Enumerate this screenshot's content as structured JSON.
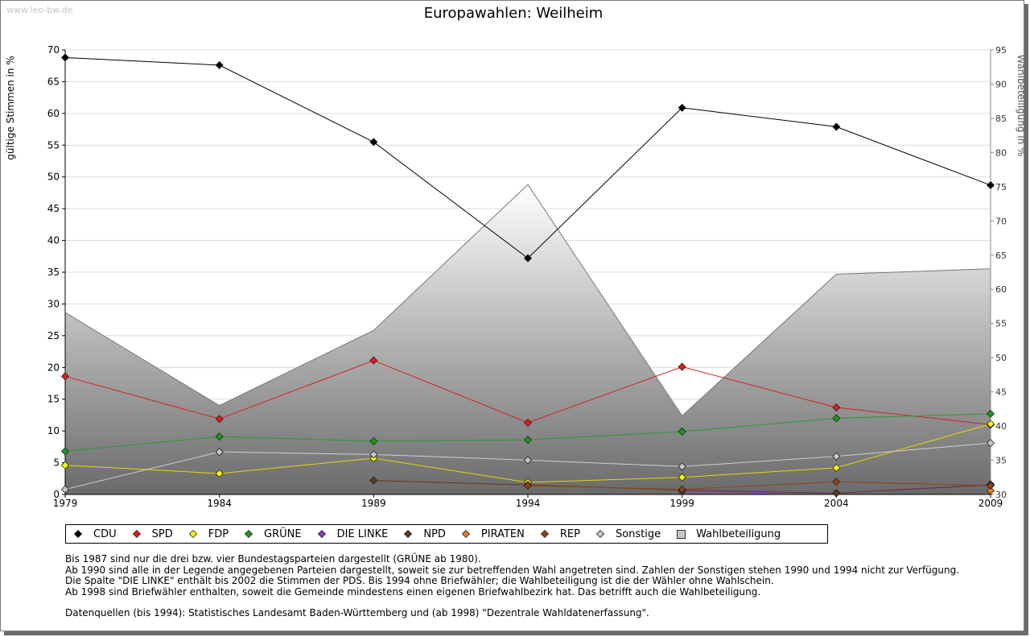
{
  "watermark": "www.leo-bw.de",
  "chart_data": {
    "type": "line",
    "title": "Europawahlen: Weilheim",
    "ylabel": "gültige Stimmen in %",
    "y2label": "Wahlbeteiligung in %",
    "x": [
      "1979",
      "1984",
      "1989",
      "1994",
      "1999",
      "2004",
      "2009"
    ],
    "ylim": [
      0,
      70
    ],
    "yticks": [
      0,
      5,
      10,
      15,
      20,
      25,
      30,
      35,
      40,
      45,
      50,
      55,
      60,
      65,
      70
    ],
    "y2lim": [
      30,
      95
    ],
    "y2ticks": [
      30,
      35,
      40,
      45,
      50,
      55,
      60,
      65,
      70,
      75,
      80,
      85,
      90,
      95
    ],
    "area": {
      "name": "Wahlbeteiligung",
      "values": [
        56.6,
        43.0,
        54.0,
        75.3,
        41.5,
        62.2,
        63.0
      ]
    },
    "series": [
      {
        "name": "CDU",
        "color": "#000000",
        "line": "#000000",
        "values": [
          68.8,
          67.6,
          55.5,
          37.2,
          60.9,
          57.9,
          48.7
        ]
      },
      {
        "name": "SPD",
        "color": "#e41a1c",
        "line": "#d42020",
        "values": [
          18.6,
          11.9,
          21.1,
          11.3,
          20.1,
          13.7,
          11.0
        ]
      },
      {
        "name": "FDP",
        "color": "#ffff00",
        "line": "#e6d800",
        "values": [
          4.6,
          3.3,
          5.7,
          1.9,
          2.7,
          4.2,
          11.1
        ]
      },
      {
        "name": "GRÜNE",
        "color": "#1a9a1a",
        "line": "#2a9a2a",
        "values": [
          6.8,
          9.1,
          8.4,
          8.6,
          9.9,
          12.0,
          12.7
        ]
      },
      {
        "name": "DIE LINKE",
        "color": "#9933cc",
        "line": "#9933cc",
        "values": [
          null,
          null,
          null,
          null,
          0.5,
          0.2,
          1.6
        ]
      },
      {
        "name": "NPD",
        "color": "#5c3a1e",
        "line": "#5c3a1e",
        "values": [
          null,
          null,
          2.2,
          1.5,
          0.7,
          0.2,
          1.5
        ]
      },
      {
        "name": "PIRATEN",
        "color": "#ee7a1a",
        "line": "#ee7a1a",
        "values": [
          null,
          null,
          null,
          null,
          null,
          null,
          0.6
        ]
      },
      {
        "name": "REP",
        "color": "#8b4513",
        "line": "#8b4513",
        "values": [
          null,
          null,
          null,
          1.4,
          0.8,
          2.0,
          1.4
        ]
      },
      {
        "name": "Sonstige",
        "color": "#c8c8c8",
        "line": "#cfcfcf",
        "values": [
          0.8,
          6.7,
          6.3,
          5.4,
          4.4,
          6.0,
          8.1
        ]
      }
    ]
  },
  "legend": [
    {
      "label": "CDU",
      "color": "#000000",
      "shape": "diamond"
    },
    {
      "label": "SPD",
      "color": "#e41a1c",
      "shape": "diamond"
    },
    {
      "label": "FDP",
      "color": "#ffff00",
      "shape": "diamond"
    },
    {
      "label": "GRÜNE",
      "color": "#1a9a1a",
      "shape": "diamond"
    },
    {
      "label": "DIE LINKE",
      "color": "#9933cc",
      "shape": "diamond"
    },
    {
      "label": "NPD",
      "color": "#5c3a1e",
      "shape": "diamond"
    },
    {
      "label": "PIRATEN",
      "color": "#ee7a1a",
      "shape": "diamond"
    },
    {
      "label": "REP",
      "color": "#8b4513",
      "shape": "diamond"
    },
    {
      "label": "Sonstige",
      "color": "#c8c8c8",
      "shape": "diamond"
    },
    {
      "label": "Wahlbeteiligung",
      "color": "#c0c0c0",
      "shape": "square"
    }
  ],
  "notes": [
    "Bis 1987 sind nur die drei bzw. vier Bundestagsparteien dargestellt (GRÜNE ab 1980).",
    "Ab 1990 sind alle in der Legende angegebenen Parteien dargestellt, soweit sie zur betreffenden Wahl angetreten sind. Zahlen der Sonstigen stehen 1990 und 1994 nicht zur Verfügung.",
    "Die Spalte \"DIE LINKE\" enthält bis 2002 die Stimmen der PDS. Bis 1994 ohne Briefwähler; die Wahlbeteiligung ist die der Wähler ohne Wahlschein.",
    "Ab 1998 sind Briefwähler enthalten, soweit die Gemeinde mindestens einen eigenen Briefwahlbezirk hat. Das betrifft auch die Wahlbeteiligung.",
    "Datenquellen (bis 1994): Statistisches Landesamt Baden-Württemberg und (ab 1998) \"Dezentrale Wahldatenerfassung\"."
  ]
}
